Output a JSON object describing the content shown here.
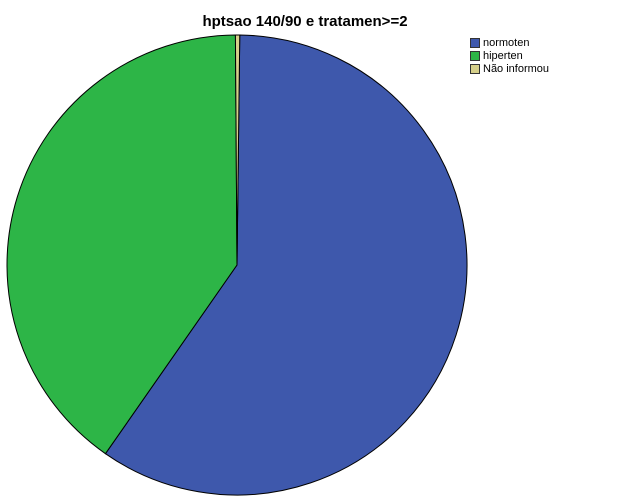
{
  "chart_data": {
    "type": "pie",
    "title": "hptsao 140/90 e tratamen>=2",
    "slices": [
      {
        "label": "normoten",
        "value": 59.5,
        "color": "#3E58AC"
      },
      {
        "label": "hiperten",
        "value": 40.2,
        "color": "#2DB547"
      },
      {
        "label": "Não informou",
        "value": 0.3,
        "color": "#D6D08A"
      }
    ],
    "legend_position": "top-right",
    "stroke_color": "#000000"
  }
}
